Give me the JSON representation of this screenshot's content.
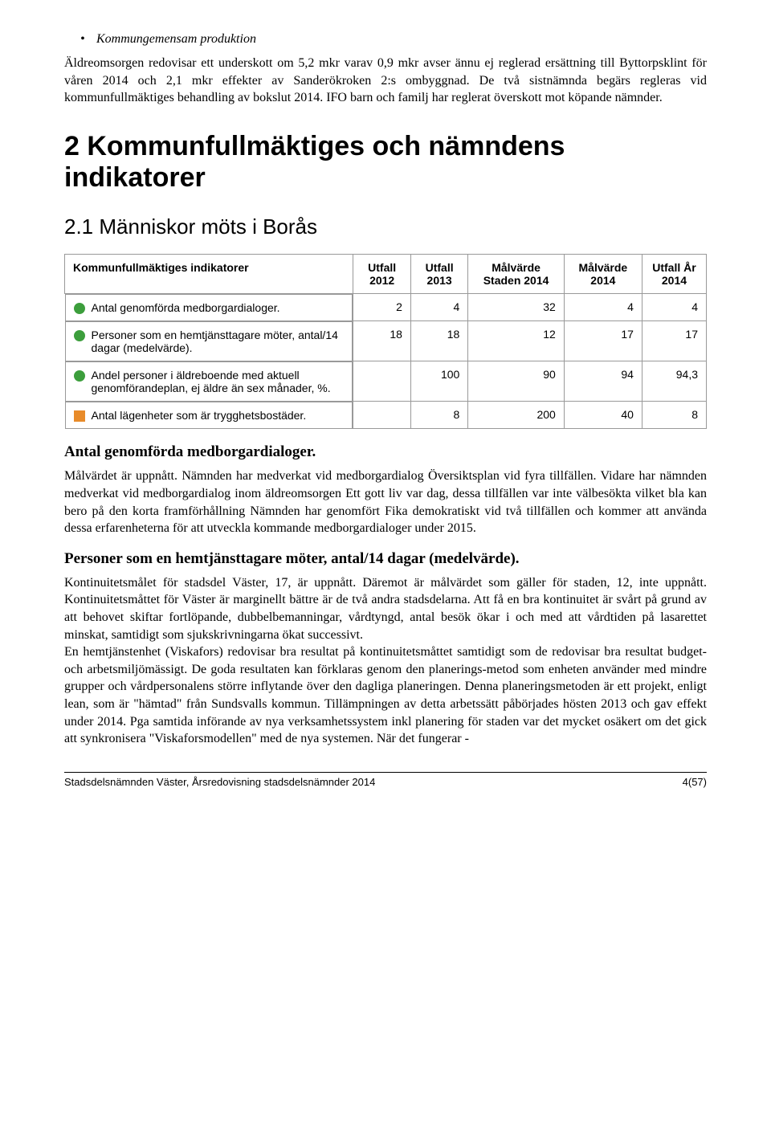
{
  "bullet_item": "Kommungemensam produktion",
  "intro_para": "Äldreomsorgen redovisar ett underskott om 5,2 mkr varav 0,9 mkr avser ännu ej reglerad ersättning till Byttorpsklint för våren 2014 och 2,1 mkr effekter av Sanderökroken 2:s ombyggnad. De två sistnämnda begärs regleras vid kommunfullmäktiges behandling av bokslut 2014. IFO barn och familj har reglerat överskott mot köpande nämnder.",
  "h1": "2 Kommunfullmäktiges och nämndens indikatorer",
  "h2": "2.1 Människor möts i Borås",
  "table": {
    "headers": [
      "Kommunfullmäktiges indikatorer",
      "Utfall 2012",
      "Utfall 2013",
      "Målvärde Staden 2014",
      "Målvärde 2014",
      "Utfall År 2014"
    ],
    "rows": [
      {
        "marker": "green",
        "label": "Antal genomförda medborgardialoger.",
        "vals": [
          "2",
          "4",
          "32",
          "4",
          "4"
        ]
      },
      {
        "marker": "green",
        "label": "Personer som en hemtjänsttagare möter, antal/14 dagar (medelvärde).",
        "vals": [
          "18",
          "18",
          "12",
          "17",
          "17"
        ]
      },
      {
        "marker": "green",
        "label": "Andel personer i äldreboende med aktuell genomförandeplan, ej äldre än sex månader, %.",
        "vals": [
          "",
          "100",
          "90",
          "94",
          "94,3"
        ]
      },
      {
        "marker": "orange",
        "label": "Antal lägenheter som är trygghetsbostäder.",
        "vals": [
          "",
          "8",
          "200",
          "40",
          "8"
        ]
      }
    ]
  },
  "para1_title": "Antal genomförda medborgardialoger.",
  "para1_body": "Målvärdet är uppnått. Nämnden har medverkat vid medborgardialog Översiktsplan vid fyra tillfällen. Vidare har nämnden medverkat vid medborgardialog inom äldreomsorgen Ett gott liv var dag, dessa tillfällen var inte välbesökta vilket bla kan bero på den korta framförhållning Nämnden har genomfört Fika demokratiskt vid två tillfällen och kommer att använda dessa erfarenheterna för att utveckla kommande medborgardialoger under 2015.",
  "para2_title": "Personer som en hemtjänsttagare möter, antal/14 dagar (medelvärde).",
  "para2_body_1": "Kontinuitetsmålet för stadsdel Väster, 17,  är uppnått. Däremot är målvärdet som gäller för staden, 12, inte uppnått. Kontinuitetsmåttet för Väster är marginellt bättre är de två andra stadsdelarna. Att få en bra kontinuitet är svårt på grund av att behovet skiftar fortlöpande, dubbelbemanningar, vårdtyngd, antal besök ökar i och med att vårdtiden på lasarettet minskat, samtidigt som sjukskrivningarna ökat successivt.",
  "para2_body_2": "En hemtjänstenhet (Viskafors) redovisar bra resultat på kontinuitetsmåttet samtidigt som de redovisar bra resultat budget- och arbetsmiljömässigt. De goda resultaten kan förklaras genom den planerings-metod som enheten använder med mindre grupper och vårdpersonalens större inflytande över den dagliga planeringen. Denna planeringsmetoden är ett projekt, enligt lean, som är \"hämtad\" från Sundsvalls kommun. Tillämpningen av detta arbetssätt påbörjades hösten 2013 och gav effekt under 2014. Pga samtida införande av nya verksamhetssystem inkl planering för staden var det mycket osäkert om det gick att synkronisera \"Viskaforsmodellen\" med de nya systemen. När det fungerar -",
  "footer_left": "Stadsdelsnämnden Väster, Årsredovisning stadsdelsnämnder 2014",
  "footer_right": "4(57)",
  "colors": {
    "green": "#3c9e3c",
    "orange": "#e88b2a"
  }
}
